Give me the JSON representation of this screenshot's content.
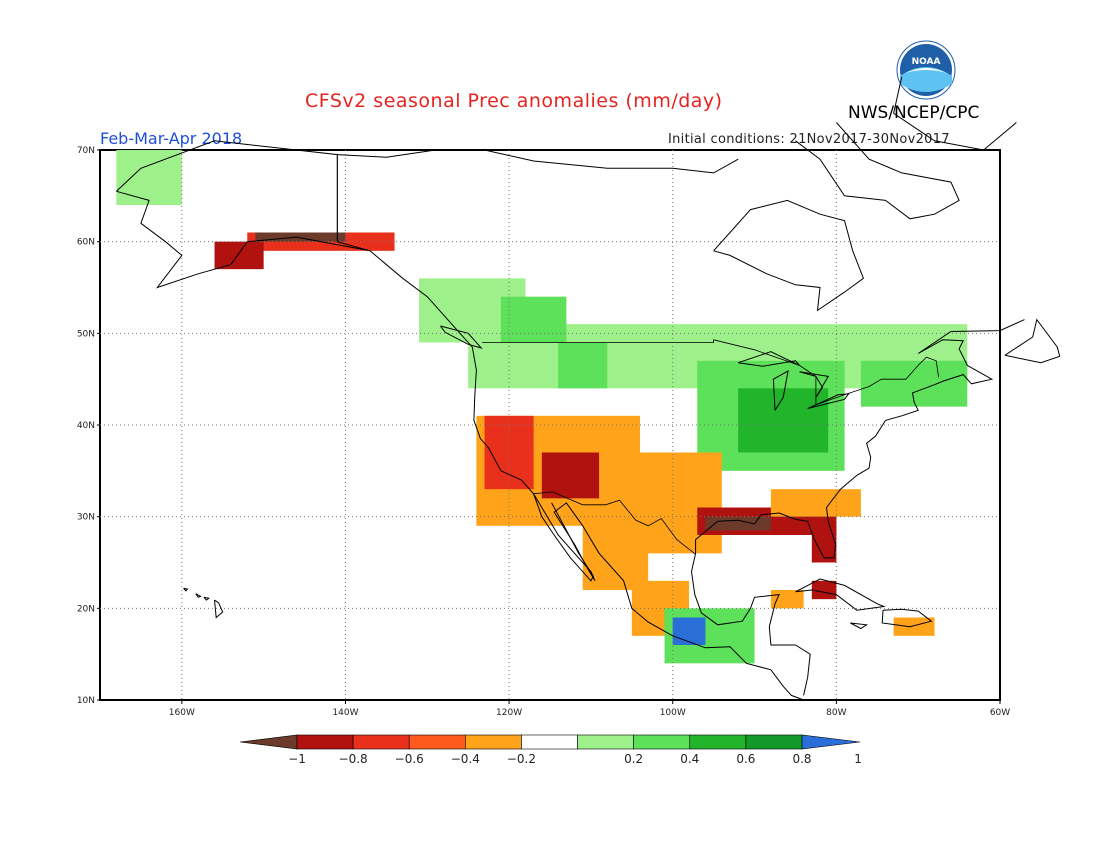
{
  "header": {
    "title": "CFSv2 seasonal Prec anomalies (mm/day)",
    "org": "NWS/NCEP/CPC",
    "period": "Feb-Mar-Apr 2018",
    "initial_conditions": "Initial conditions: 21Nov2017-30Nov2017",
    "logo_text": "NOAA"
  },
  "axes": {
    "lat_ticks": [
      {
        "value": 70,
        "label": "70N"
      },
      {
        "value": 60,
        "label": "60N"
      },
      {
        "value": 50,
        "label": "50N"
      },
      {
        "value": 40,
        "label": "40N"
      },
      {
        "value": 30,
        "label": "30N"
      },
      {
        "value": 20,
        "label": "20N"
      },
      {
        "value": 10,
        "label": "10N"
      }
    ],
    "lon_ticks": [
      {
        "value": -160,
        "label": "160W"
      },
      {
        "value": -140,
        "label": "140W"
      },
      {
        "value": -120,
        "label": "120W"
      },
      {
        "value": -100,
        "label": "100W"
      },
      {
        "value": -80,
        "label": "80W"
      },
      {
        "value": -60,
        "label": "60W"
      }
    ],
    "lon_range": [
      -170,
      -60
    ],
    "lat_range": [
      10,
      70
    ],
    "grid": "dotted"
  },
  "colorbar": {
    "labels": [
      "-1",
      "-0.8",
      "-0.6",
      "-0.4",
      "-0.2",
      "0.2",
      "0.4",
      "0.6",
      "0.8",
      "1"
    ],
    "colors": [
      "#6b3a2a",
      "#b0120f",
      "#e8301c",
      "#ff5a1e",
      "#ffa31a",
      "#ffffff",
      "#9ef08a",
      "#5de05a",
      "#22b52c",
      "#119a2a",
      "#2a6fd8"
    ]
  },
  "anomaly_colors": {
    "brown": "#6b3a2a",
    "darkred": "#b0120f",
    "red": "#e8301c",
    "orange": "#ffa31a",
    "lightgreen": "#9ef08a",
    "green": "#5de05a",
    "darkgreen": "#22b52c",
    "blue": "#2a6fd8"
  },
  "anomaly_regions": [
    {
      "color": "lightgreen",
      "lon": [
        -125,
        -64
      ],
      "lat": [
        44,
        51
      ]
    },
    {
      "color": "lightgreen",
      "lon": [
        -131,
        -118
      ],
      "lat": [
        49,
        56
      ]
    },
    {
      "color": "green",
      "lon": [
        -121,
        -113
      ],
      "lat": [
        49,
        54
      ]
    },
    {
      "color": "green",
      "lon": [
        -97,
        -79
      ],
      "lat": [
        35,
        47
      ]
    },
    {
      "color": "darkgreen",
      "lon": [
        -92,
        -81
      ],
      "lat": [
        37,
        44
      ]
    },
    {
      "color": "green",
      "lon": [
        -77,
        -64
      ],
      "lat": [
        42,
        47
      ]
    },
    {
      "color": "green",
      "lon": [
        -114,
        -108
      ],
      "lat": [
        44,
        49
      ]
    },
    {
      "color": "lightgreen",
      "lon": [
        -168,
        -160
      ],
      "lat": [
        64,
        70
      ]
    },
    {
      "color": "orange",
      "lon": [
        -124,
        -104
      ],
      "lat": [
        29,
        41
      ]
    },
    {
      "color": "orange",
      "lon": [
        -104,
        -94
      ],
      "lat": [
        26,
        37
      ]
    },
    {
      "color": "red",
      "lon": [
        -123,
        -117
      ],
      "lat": [
        33,
        41
      ]
    },
    {
      "color": "darkred",
      "lon": [
        -116,
        -109
      ],
      "lat": [
        32,
        37
      ]
    },
    {
      "color": "darkred",
      "lon": [
        -97,
        -80
      ],
      "lat": [
        28,
        31
      ]
    },
    {
      "color": "darkred",
      "lon": [
        -83,
        -80
      ],
      "lat": [
        25,
        29
      ]
    },
    {
      "color": "brown",
      "lon": [
        -96,
        -88
      ],
      "lat": [
        28.5,
        30
      ]
    },
    {
      "color": "orange",
      "lon": [
        -88,
        -77
      ],
      "lat": [
        30,
        33
      ]
    },
    {
      "color": "orange",
      "lon": [
        -111,
        -103
      ],
      "lat": [
        22,
        31
      ]
    },
    {
      "color": "orange",
      "lon": [
        -105,
        -98
      ],
      "lat": [
        17,
        23
      ]
    },
    {
      "color": "green",
      "lon": [
        -101,
        -90
      ],
      "lat": [
        14,
        20
      ]
    },
    {
      "color": "blue",
      "lon": [
        -100,
        -96
      ],
      "lat": [
        16,
        19
      ]
    },
    {
      "color": "red",
      "lon": [
        -152,
        -134
      ],
      "lat": [
        59,
        61
      ]
    },
    {
      "color": "brown",
      "lon": [
        -151,
        -140
      ],
      "lat": [
        60,
        61
      ]
    },
    {
      "color": "darkred",
      "lon": [
        -156,
        -150
      ],
      "lat": [
        57,
        60
      ]
    },
    {
      "color": "orange",
      "lon": [
        -73,
        -68
      ],
      "lat": [
        17,
        19
      ]
    },
    {
      "color": "orange",
      "lon": [
        -88,
        -84
      ],
      "lat": [
        20,
        22
      ]
    },
    {
      "color": "darkred",
      "lon": [
        -83,
        -80
      ],
      "lat": [
        21,
        23
      ]
    }
  ]
}
